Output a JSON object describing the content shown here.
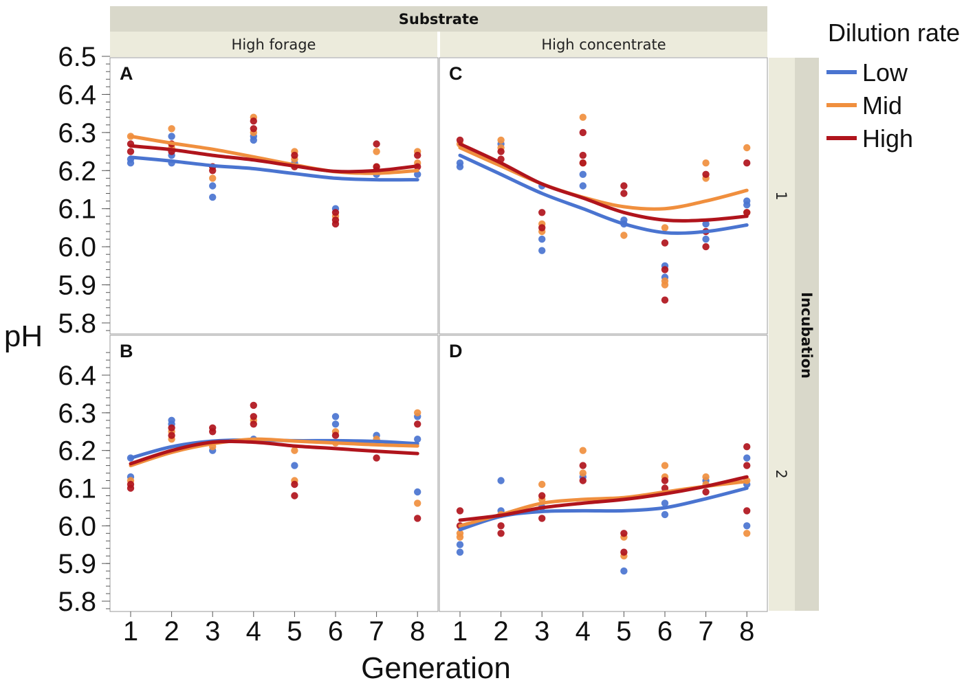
{
  "chart_data": {
    "type": "scatter",
    "title": "",
    "xlabel": "Generation",
    "ylabel": "pH",
    "x_ticks": [
      "1",
      "2",
      "3",
      "4",
      "5",
      "6",
      "7",
      "8"
    ],
    "column_facet": {
      "title": "Substrate",
      "levels": [
        "High forage",
        "High concentrate"
      ]
    },
    "row_facet": {
      "title": "Incubation",
      "levels": [
        "1",
        "2"
      ]
    },
    "legend": {
      "title": "Dilution rate",
      "position": "top-right",
      "entries": [
        {
          "name": "Low",
          "color": "#4a74d0"
        },
        {
          "name": "Mid",
          "color": "#f08f3e"
        },
        {
          "name": "High",
          "color": "#b0141c"
        }
      ]
    },
    "row_axes": [
      {
        "ylim": [
          5.76,
          6.5
        ],
        "ticks": [
          "6.5",
          "6.4",
          "6.3",
          "6.2",
          "6.1",
          "6.0",
          "5.9",
          "5.8"
        ],
        "tick_values": [
          6.5,
          6.4,
          6.3,
          6.2,
          6.1,
          6.0,
          5.9,
          5.8
        ]
      },
      {
        "ylim": [
          5.76,
          6.47
        ],
        "ticks": [
          "6.4",
          "6.3",
          "6.2",
          "6.1",
          "6.0",
          "5.9",
          "5.8"
        ],
        "tick_values": [
          6.4,
          6.3,
          6.2,
          6.1,
          6.0,
          5.9,
          5.8
        ]
      }
    ],
    "panels": [
      {
        "label": "A",
        "column": 0,
        "row": 0,
        "lines": {
          "Low": [
            6.235,
            6.225,
            6.213,
            6.205,
            6.192,
            6.18,
            6.176,
            6.176
          ],
          "Mid": [
            6.29,
            6.272,
            6.256,
            6.236,
            6.215,
            6.197,
            6.193,
            6.2
          ],
          "High": [
            6.265,
            6.255,
            6.24,
            6.228,
            6.212,
            6.198,
            6.2,
            6.212
          ]
        },
        "points": {
          "Low": [
            [
              1,
              6.22
            ],
            [
              1,
              6.23
            ],
            [
              2,
              6.22
            ],
            [
              2,
              6.24
            ],
            [
              2,
              6.29
            ],
            [
              3,
              6.16
            ],
            [
              3,
              6.13
            ],
            [
              4,
              6.28
            ],
            [
              4,
              6.29
            ],
            [
              5,
              6.22
            ],
            [
              6,
              6.1
            ],
            [
              7,
              6.19
            ],
            [
              8,
              6.19
            ]
          ],
          "Mid": [
            [
              1,
              6.29
            ],
            [
              2,
              6.31
            ],
            [
              2,
              6.26
            ],
            [
              3,
              6.18
            ],
            [
              3,
              6.21
            ],
            [
              4,
              6.34
            ],
            [
              4,
              6.3
            ],
            [
              5,
              6.25
            ],
            [
              5,
              6.23
            ],
            [
              6,
              6.08
            ],
            [
              7,
              6.25
            ],
            [
              7,
              6.21
            ],
            [
              8,
              6.25
            ],
            [
              8,
              6.22
            ]
          ],
          "High": [
            [
              1,
              6.25
            ],
            [
              1,
              6.27
            ],
            [
              2,
              6.25
            ],
            [
              2,
              6.27
            ],
            [
              3,
              6.2
            ],
            [
              3,
              6.21
            ],
            [
              4,
              6.33
            ],
            [
              4,
              6.31
            ],
            [
              5,
              6.24
            ],
            [
              5,
              6.21
            ],
            [
              6,
              6.06
            ],
            [
              6,
              6.07
            ],
            [
              6,
              6.09
            ],
            [
              7,
              6.27
            ],
            [
              7,
              6.21
            ],
            [
              7,
              6.2
            ],
            [
              8,
              6.24
            ],
            [
              8,
              6.21
            ]
          ]
        }
      },
      {
        "label": "C",
        "column": 1,
        "row": 0,
        "lines": {
          "Low": [
            6.24,
            6.19,
            6.14,
            6.1,
            6.06,
            6.037,
            6.04,
            6.057
          ],
          "Mid": [
            6.26,
            6.212,
            6.165,
            6.13,
            6.105,
            6.1,
            6.12,
            6.148
          ],
          "High": [
            6.27,
            6.22,
            6.165,
            6.128,
            6.09,
            6.07,
            6.07,
            6.08
          ]
        },
        "points": {
          "Low": [
            [
              1,
              6.21
            ],
            [
              1,
              6.22
            ],
            [
              2,
              6.27
            ],
            [
              3,
              6.02
            ],
            [
              3,
              5.99
            ],
            [
              3,
              6.16
            ],
            [
              4,
              6.16
            ],
            [
              4,
              6.19
            ],
            [
              5,
              6.06
            ],
            [
              5,
              6.07
            ],
            [
              6,
              5.92
            ],
            [
              6,
              5.95
            ],
            [
              7,
              6.06
            ],
            [
              7,
              6.02
            ],
            [
              8,
              6.11
            ],
            [
              8,
              6.12
            ]
          ],
          "Mid": [
            [
              1,
              6.27
            ],
            [
              2,
              6.28
            ],
            [
              2,
              6.26
            ],
            [
              3,
              6.04
            ],
            [
              3,
              6.06
            ],
            [
              4,
              6.34
            ],
            [
              4,
              6.22
            ],
            [
              5,
              6.03
            ],
            [
              6,
              6.05
            ],
            [
              6,
              5.9
            ],
            [
              6,
              5.91
            ],
            [
              7,
              6.22
            ],
            [
              7,
              6.18
            ],
            [
              8,
              6.26
            ],
            [
              8,
              6.09
            ]
          ],
          "High": [
            [
              1,
              6.28
            ],
            [
              2,
              6.25
            ],
            [
              2,
              6.23
            ],
            [
              3,
              6.09
            ],
            [
              3,
              6.05
            ],
            [
              4,
              6.3
            ],
            [
              4,
              6.24
            ],
            [
              4,
              6.22
            ],
            [
              5,
              6.16
            ],
            [
              5,
              6.14
            ],
            [
              6,
              6.01
            ],
            [
              6,
              5.94
            ],
            [
              6,
              5.86
            ],
            [
              7,
              6.19
            ],
            [
              7,
              6.0
            ],
            [
              7,
              6.04
            ],
            [
              8,
              6.22
            ],
            [
              8,
              6.09
            ]
          ]
        }
      },
      {
        "label": "B",
        "column": 0,
        "row": 1,
        "lines": {
          "Low": [
            6.18,
            6.21,
            6.225,
            6.228,
            6.226,
            6.226,
            6.224,
            6.218
          ],
          "Mid": [
            6.16,
            6.195,
            6.218,
            6.23,
            6.225,
            6.22,
            6.215,
            6.212
          ],
          "High": [
            6.165,
            6.2,
            6.222,
            6.222,
            6.212,
            6.205,
            6.198,
            6.192
          ]
        },
        "points": {
          "Low": [
            [
              1,
              6.18
            ],
            [
              1,
              6.13
            ],
            [
              2,
              6.28
            ],
            [
              2,
              6.27
            ],
            [
              3,
              6.2
            ],
            [
              4,
              6.23
            ],
            [
              5,
              6.16
            ],
            [
              6,
              6.29
            ],
            [
              6,
              6.27
            ],
            [
              7,
              6.24
            ],
            [
              8,
              6.23
            ],
            [
              8,
              6.09
            ],
            [
              8,
              6.29
            ]
          ],
          "Mid": [
            [
              1,
              6.12
            ],
            [
              2,
              6.23
            ],
            [
              2,
              6.25
            ],
            [
              3,
              6.21
            ],
            [
              4,
              6.28
            ],
            [
              5,
              6.2
            ],
            [
              5,
              6.12
            ],
            [
              6,
              6.25
            ],
            [
              6,
              6.22
            ],
            [
              7,
              6.23
            ],
            [
              8,
              6.3
            ],
            [
              8,
              6.06
            ]
          ],
          "High": [
            [
              1,
              6.1
            ],
            [
              1,
              6.11
            ],
            [
              2,
              6.26
            ],
            [
              2,
              6.24
            ],
            [
              3,
              6.26
            ],
            [
              3,
              6.25
            ],
            [
              4,
              6.32
            ],
            [
              4,
              6.29
            ],
            [
              4,
              6.27
            ],
            [
              5,
              6.11
            ],
            [
              5,
              6.08
            ],
            [
              6,
              6.24
            ],
            [
              7,
              6.18
            ],
            [
              8,
              6.27
            ],
            [
              8,
              6.02
            ]
          ]
        }
      },
      {
        "label": "D",
        "column": 1,
        "row": 1,
        "lines": {
          "Low": [
            5.99,
            6.025,
            6.038,
            6.04,
            6.04,
            6.048,
            6.072,
            6.1
          ],
          "Mid": [
            6.0,
            6.03,
            6.06,
            6.07,
            6.075,
            6.09,
            6.105,
            6.118
          ],
          "High": [
            6.015,
            6.028,
            6.048,
            6.06,
            6.07,
            6.085,
            6.105,
            6.13
          ]
        },
        "points": {
          "Low": [
            [
              1,
              5.95
            ],
            [
              1,
              5.93
            ],
            [
              2,
              6.12
            ],
            [
              2,
              6.04
            ],
            [
              3,
              6.05
            ],
            [
              4,
              6.13
            ],
            [
              5,
              5.88
            ],
            [
              6,
              6.06
            ],
            [
              6,
              6.03
            ],
            [
              7,
              6.12
            ],
            [
              8,
              6.18
            ],
            [
              8,
              6.11
            ],
            [
              8,
              6.0
            ]
          ],
          "Mid": [
            [
              1,
              5.98
            ],
            [
              1,
              5.97
            ],
            [
              2,
              6.03
            ],
            [
              3,
              6.11
            ],
            [
              3,
              6.07
            ],
            [
              4,
              6.2
            ],
            [
              4,
              6.14
            ],
            [
              5,
              5.97
            ],
            [
              5,
              5.92
            ],
            [
              6,
              6.16
            ],
            [
              6,
              6.13
            ],
            [
              7,
              6.13
            ],
            [
              7,
              6.11
            ],
            [
              8,
              6.12
            ],
            [
              8,
              5.98
            ]
          ],
          "High": [
            [
              1,
              6.04
            ],
            [
              1,
              6.0
            ],
            [
              2,
              6.0
            ],
            [
              2,
              5.98
            ],
            [
              3,
              6.08
            ],
            [
              3,
              6.02
            ],
            [
              4,
              6.16
            ],
            [
              4,
              6.12
            ],
            [
              5,
              5.98
            ],
            [
              5,
              5.93
            ],
            [
              6,
              6.12
            ],
            [
              6,
              6.1
            ],
            [
              7,
              6.09
            ],
            [
              8,
              6.21
            ],
            [
              8,
              6.16
            ],
            [
              8,
              6.04
            ]
          ]
        }
      }
    ]
  }
}
